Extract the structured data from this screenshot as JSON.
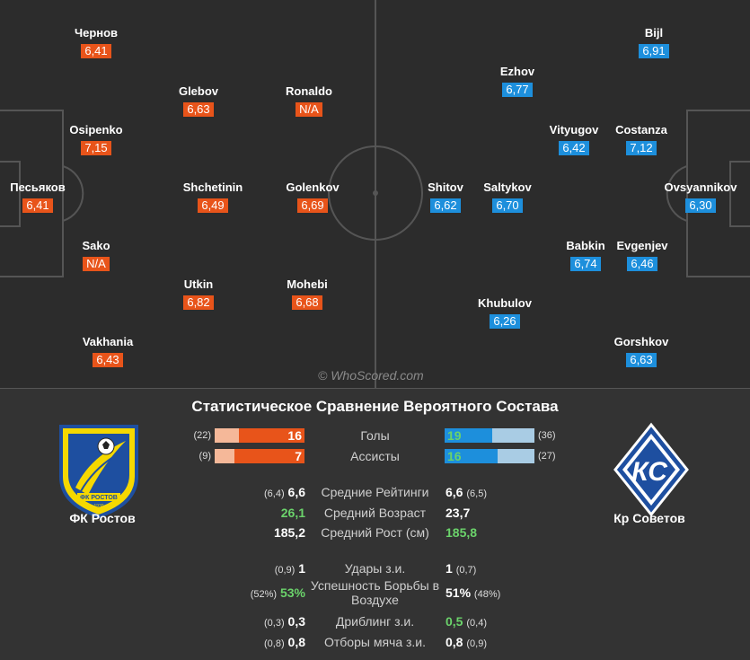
{
  "pitch": {
    "watermark": "© WhoScored.com",
    "home_players": [
      {
        "name": "Песьяков",
        "rating": "6,41"
      },
      {
        "name": "Чернов",
        "rating": "6,41"
      },
      {
        "name": "Osipenko",
        "rating": "7,15"
      },
      {
        "name": "Sako",
        "rating": "N/A"
      },
      {
        "name": "Vakhania",
        "rating": "6,43"
      },
      {
        "name": "Glebov",
        "rating": "6,63"
      },
      {
        "name": "Shchetinin",
        "rating": "6,49"
      },
      {
        "name": "Utkin",
        "rating": "6,82"
      },
      {
        "name": "Ronaldo",
        "rating": "N/A"
      },
      {
        "name": "Golenkov",
        "rating": "6,69"
      },
      {
        "name": "Mohebi",
        "rating": "6,68"
      }
    ],
    "away_players": [
      {
        "name": "Bijl",
        "rating": "6,91"
      },
      {
        "name": "Ezhov",
        "rating": "6,77"
      },
      {
        "name": "Vityugov",
        "rating": "6,42"
      },
      {
        "name": "Costanza",
        "rating": "7,12"
      },
      {
        "name": "Shitov",
        "rating": "6,62"
      },
      {
        "name": "Saltykov",
        "rating": "6,70"
      },
      {
        "name": "Ovsyannikov",
        "rating": "6,30"
      },
      {
        "name": "Babkin",
        "rating": "6,74"
      },
      {
        "name": "Evgenjev",
        "rating": "6,46"
      },
      {
        "name": "Khubulov",
        "rating": "6,26"
      },
      {
        "name": "Gorshkov",
        "rating": "6,63"
      }
    ]
  },
  "stats": {
    "title": "Статистическое Сравнение Вероятного Состава",
    "home_team": {
      "name": "ФК Ростов",
      "logo_text": "ФК РОСТОВ",
      "logo_year": "1930",
      "color": "#f5d800"
    },
    "away_team": {
      "name": "Кр Советов",
      "logo_text": "КС",
      "color": "#1e4fa0"
    },
    "bars": [
      {
        "label": "Голы",
        "home_value": "16",
        "home_prev": "(22)",
        "home_fraction": 0.73,
        "away_value": "19",
        "away_prev": "(36)",
        "away_fraction": 0.53
      },
      {
        "label": "Ассисты",
        "home_value": "7",
        "home_prev": "(9)",
        "home_fraction": 0.78,
        "away_value": "16",
        "away_prev": "(27)",
        "away_fraction": 0.59
      }
    ],
    "rows": [
      {
        "label": "Средние Рейтинги",
        "home_value": "6,6",
        "home_prev": "(6,4)",
        "away_value": "6,6",
        "away_prev": "(6,5)",
        "winner": "none"
      },
      {
        "label": "Средний Возраст",
        "home_value": "26,1",
        "home_prev": "",
        "away_value": "23,7",
        "away_prev": "",
        "winner": "home"
      },
      {
        "label": "Средний Рост (см)",
        "home_value": "185,2",
        "home_prev": "",
        "away_value": "185,8",
        "away_prev": "",
        "winner": "away"
      },
      {
        "label": "Удары з.и.",
        "home_value": "1",
        "home_prev": "(0,9)",
        "away_value": "1",
        "away_prev": "(0,7)",
        "winner": "none"
      },
      {
        "label": "Успешность Борьбы в Воздухе",
        "home_value": "53%",
        "home_prev": "(52%)",
        "away_value": "51%",
        "away_prev": "(48%)",
        "winner": "home"
      },
      {
        "label": "Дриблинг з.и.",
        "home_value": "0,3",
        "home_prev": "(0,3)",
        "away_value": "0,5",
        "away_prev": "(0,4)",
        "winner": "away"
      },
      {
        "label": "Отборы мяча з.и.",
        "home_value": "0,8",
        "home_prev": "(0,8)",
        "away_value": "0,8",
        "away_prev": "(0,9)",
        "winner": "none"
      }
    ]
  }
}
